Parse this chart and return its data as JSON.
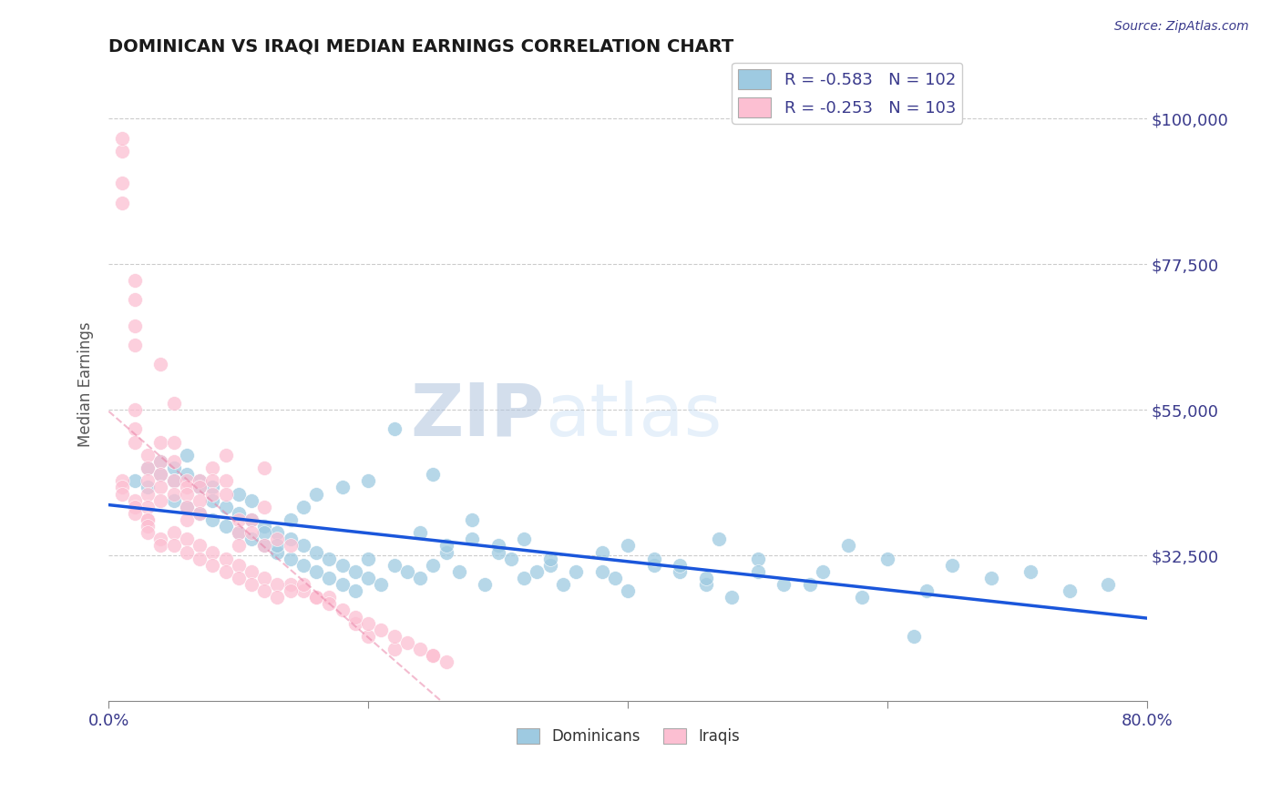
{
  "title": "DOMINICAN VS IRAQI MEDIAN EARNINGS CORRELATION CHART",
  "source_text": "Source: ZipAtlas.com",
  "ylabel": "Median Earnings",
  "xlim": [
    0.0,
    0.8
  ],
  "ylim": [
    10000,
    108000
  ],
  "yticks": [
    32500,
    55000,
    77500,
    100000
  ],
  "ytick_labels": [
    "$32,500",
    "$55,000",
    "$77,500",
    "$100,000"
  ],
  "xtick_labels": [
    "0.0%",
    "",
    "",
    "",
    "80.0%"
  ],
  "xticks": [
    0.0,
    0.2,
    0.4,
    0.6,
    0.8
  ],
  "legend_blue_label": "R = -0.583   N = 102",
  "legend_pink_label": "R = -0.253   N = 103",
  "blue_color": "#9ecae1",
  "pink_color": "#fcbfd2",
  "trend_blue_color": "#1a56db",
  "trend_pink_color": "#e879a0",
  "watermark_zip": "ZIP",
  "watermark_atlas": "atlas",
  "legend_bottom_blue": "Dominicans",
  "legend_bottom_pink": "Iraqis",
  "blue_dots_x": [
    0.02,
    0.03,
    0.04,
    0.04,
    0.05,
    0.05,
    0.06,
    0.06,
    0.07,
    0.07,
    0.08,
    0.08,
    0.09,
    0.09,
    0.1,
    0.1,
    0.11,
    0.11,
    0.12,
    0.12,
    0.13,
    0.13,
    0.14,
    0.14,
    0.15,
    0.15,
    0.16,
    0.16,
    0.17,
    0.17,
    0.18,
    0.18,
    0.19,
    0.19,
    0.2,
    0.2,
    0.21,
    0.22,
    0.22,
    0.23,
    0.24,
    0.25,
    0.25,
    0.26,
    0.27,
    0.28,
    0.29,
    0.3,
    0.31,
    0.32,
    0.33,
    0.34,
    0.35,
    0.36,
    0.38,
    0.39,
    0.4,
    0.42,
    0.44,
    0.46,
    0.47,
    0.48,
    0.5,
    0.52,
    0.55,
    0.57,
    0.6,
    0.63,
    0.65,
    0.68,
    0.71,
    0.74,
    0.77,
    0.14,
    0.15,
    0.16,
    0.18,
    0.2,
    0.24,
    0.26,
    0.28,
    0.3,
    0.32,
    0.34,
    0.38,
    0.4,
    0.42,
    0.44,
    0.46,
    0.5,
    0.54,
    0.58,
    0.62,
    0.03,
    0.05,
    0.06,
    0.07,
    0.08,
    0.1,
    0.11,
    0.12,
    0.13
  ],
  "blue_dots_y": [
    44000,
    43000,
    45000,
    47000,
    41000,
    46000,
    40000,
    48000,
    39000,
    44000,
    38000,
    43000,
    37000,
    40000,
    36000,
    42000,
    35000,
    41000,
    34000,
    37000,
    33000,
    36000,
    32000,
    35000,
    31000,
    34000,
    30000,
    33000,
    29000,
    32000,
    28000,
    31000,
    27000,
    30000,
    29000,
    32000,
    28000,
    52000,
    31000,
    30000,
    29000,
    45000,
    31000,
    33000,
    30000,
    35000,
    28000,
    34000,
    32000,
    29000,
    30000,
    31000,
    28000,
    30000,
    33000,
    29000,
    27000,
    31000,
    30000,
    28000,
    35000,
    26000,
    32000,
    28000,
    30000,
    34000,
    32000,
    27000,
    31000,
    29000,
    30000,
    27000,
    28000,
    38000,
    40000,
    42000,
    43000,
    44000,
    36000,
    34000,
    38000,
    33000,
    35000,
    32000,
    30000,
    34000,
    32000,
    31000,
    29000,
    30000,
    28000,
    26000,
    20000,
    46000,
    44000,
    45000,
    43000,
    41000,
    39000,
    38000,
    36000,
    34000
  ],
  "pink_dots_x": [
    0.01,
    0.01,
    0.01,
    0.01,
    0.02,
    0.02,
    0.02,
    0.02,
    0.02,
    0.02,
    0.02,
    0.03,
    0.03,
    0.03,
    0.03,
    0.03,
    0.03,
    0.04,
    0.04,
    0.04,
    0.04,
    0.04,
    0.04,
    0.05,
    0.05,
    0.05,
    0.05,
    0.05,
    0.06,
    0.06,
    0.06,
    0.06,
    0.06,
    0.07,
    0.07,
    0.07,
    0.07,
    0.08,
    0.08,
    0.08,
    0.09,
    0.09,
    0.09,
    0.1,
    0.1,
    0.1,
    0.11,
    0.11,
    0.12,
    0.12,
    0.12,
    0.13,
    0.14,
    0.14,
    0.15,
    0.16,
    0.17,
    0.19,
    0.2,
    0.22,
    0.25,
    0.01,
    0.01,
    0.01,
    0.02,
    0.02,
    0.02,
    0.03,
    0.03,
    0.03,
    0.04,
    0.04,
    0.05,
    0.05,
    0.06,
    0.06,
    0.07,
    0.07,
    0.08,
    0.08,
    0.09,
    0.09,
    0.1,
    0.1,
    0.11,
    0.11,
    0.12,
    0.12,
    0.13,
    0.13,
    0.14,
    0.15,
    0.16,
    0.17,
    0.18,
    0.19,
    0.2,
    0.21,
    0.22,
    0.23,
    0.24,
    0.25,
    0.26
  ],
  "pink_dots_y": [
    87000,
    90000,
    95000,
    97000,
    75000,
    72000,
    68000,
    65000,
    55000,
    52000,
    50000,
    48000,
    46000,
    44000,
    42000,
    40000,
    38000,
    62000,
    50000,
    47000,
    45000,
    43000,
    41000,
    56000,
    50000,
    47000,
    44000,
    42000,
    44000,
    43000,
    42000,
    40000,
    38000,
    44000,
    43000,
    41000,
    39000,
    46000,
    44000,
    42000,
    48000,
    44000,
    42000,
    38000,
    36000,
    34000,
    38000,
    36000,
    46000,
    40000,
    34000,
    35000,
    34000,
    28000,
    27000,
    26000,
    26000,
    22000,
    20000,
    18000,
    17000,
    44000,
    43000,
    42000,
    41000,
    40000,
    39000,
    38000,
    37000,
    36000,
    35000,
    34000,
    36000,
    34000,
    35000,
    33000,
    34000,
    32000,
    33000,
    31000,
    32000,
    30000,
    31000,
    29000,
    30000,
    28000,
    29000,
    27000,
    28000,
    26000,
    27000,
    28000,
    26000,
    25000,
    24000,
    23000,
    22000,
    21000,
    20000,
    19000,
    18000,
    17000,
    16000
  ]
}
